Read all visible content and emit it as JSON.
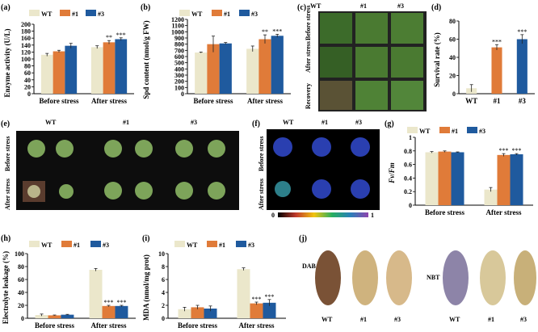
{
  "colors": {
    "WT": "#ebe7cb",
    "L1": "#e07b39",
    "L3": "#1f5a9e",
    "err": "#222222"
  },
  "legend": {
    "wt": "WT",
    "l1": "#1",
    "l3": "#3"
  },
  "groups": [
    "Before stress",
    "After stress"
  ],
  "panels": {
    "a": {
      "label": "(a)"
    },
    "b": {
      "label": "(b)"
    },
    "c": {
      "label": "(c)"
    },
    "d": {
      "label": "(d)"
    },
    "e": {
      "label": "(e)"
    },
    "f": {
      "label": "(f)"
    },
    "g": {
      "label": "(g)"
    },
    "h": {
      "label": "(h)"
    },
    "i": {
      "label": "(i)"
    },
    "j": {
      "label": "(j)"
    }
  },
  "photo_text": {
    "col_wt": "WT",
    "col_1": "#1",
    "col_3": "#3",
    "row_before": "Before stress",
    "row_after": "After stress",
    "row_recovery": "Recovery",
    "scale_min": "0",
    "scale_max": "1",
    "dab": "DAB",
    "nbt": "NBT"
  },
  "chart_data": [
    {
      "id": "a",
      "type": "bar",
      "categories": [
        "Before stress",
        "After stress"
      ],
      "series": [
        {
          "name": "WT",
          "values": [
            112,
            134
          ],
          "err": [
            4,
            4
          ]
        },
        {
          "name": "#1",
          "values": [
            122,
            148
          ],
          "err": [
            3,
            5
          ]
        },
        {
          "name": "#3",
          "values": [
            138,
            157
          ],
          "err": [
            7,
            4
          ]
        }
      ],
      "ylabel": "Enzyme activity (U/L)",
      "ylim": [
        0,
        200
      ],
      "yticks": [
        0,
        20,
        40,
        60,
        80,
        100,
        120,
        140,
        160,
        180,
        200
      ],
      "annotations": [
        [
          "",
          ""
        ],
        [
          "",
          "**",
          "***"
        ]
      ]
    },
    {
      "id": "b",
      "type": "bar",
      "categories": [
        "Before stress",
        "After stress"
      ],
      "series": [
        {
          "name": "WT",
          "values": [
            665,
            725
          ],
          "err": [
            8,
            45
          ]
        },
        {
          "name": "#1",
          "values": [
            800,
            880
          ],
          "err": [
            130,
            70
          ]
        },
        {
          "name": "#3",
          "values": [
            812,
            935
          ],
          "err": [
            15,
            25
          ]
        }
      ],
      "ylabel": "Spd content (nmol/g FW)",
      "ylim": [
        0,
        1200
      ],
      "yticks": [
        0,
        100,
        200,
        300,
        400,
        500,
        600,
        700,
        800,
        900,
        1000,
        1100,
        1200
      ],
      "annotations": [
        [
          "",
          ""
        ],
        [
          "",
          "**",
          "***"
        ]
      ]
    },
    {
      "id": "d",
      "type": "bar",
      "categories": [
        "WT",
        "#1",
        "#3"
      ],
      "values": [
        6,
        51,
        60
      ],
      "err": [
        4,
        3,
        5
      ],
      "ylabel": "Survival rate (%)",
      "ylim": [
        0,
        80
      ],
      "yticks": [
        0,
        20,
        40,
        60,
        80
      ],
      "annotations": [
        "",
        "***",
        "***"
      ]
    },
    {
      "id": "g",
      "type": "bar",
      "categories": [
        "Before stress",
        "After stress"
      ],
      "series": [
        {
          "name": "WT",
          "values": [
            0.78,
            0.23
          ],
          "err": [
            0.01,
            0.03
          ]
        },
        {
          "name": "#1",
          "values": [
            0.79,
            0.74
          ],
          "err": [
            0.01,
            0.02
          ]
        },
        {
          "name": "#3",
          "values": [
            0.78,
            0.75
          ],
          "err": [
            0.005,
            0.01
          ]
        }
      ],
      "ylabel": "Fv/Fm",
      "ylim": [
        0,
        1.0
      ],
      "yticks": [
        0,
        0.2,
        0.4,
        0.6,
        0.8,
        1.0
      ],
      "annotations": [
        [
          "",
          ""
        ],
        [
          "",
          "***",
          "***"
        ]
      ]
    },
    {
      "id": "h",
      "type": "bar",
      "categories": [
        "Before stress",
        "After stress"
      ],
      "series": [
        {
          "name": "WT",
          "values": [
            5,
            75
          ],
          "err": [
            1.5,
            2
          ]
        },
        {
          "name": "#1",
          "values": [
            4.5,
            19
          ],
          "err": [
            0.5,
            1
          ]
        },
        {
          "name": "#3",
          "values": [
            5.5,
            19
          ],
          "err": [
            0.5,
            1
          ]
        }
      ],
      "ylabel": "Electrolyte leakage (%)",
      "ylim": [
        0,
        100
      ],
      "yticks": [
        0,
        20,
        40,
        60,
        80,
        100
      ],
      "annotations": [
        [
          "",
          ""
        ],
        [
          "",
          "***",
          "***"
        ]
      ]
    },
    {
      "id": "i",
      "type": "bar",
      "categories": [
        "Before stress",
        "After stress"
      ],
      "series": [
        {
          "name": "WT",
          "values": [
            1.4,
            7.6
          ],
          "err": [
            0.3,
            0.2
          ]
        },
        {
          "name": "#1",
          "values": [
            1.7,
            2.3
          ],
          "err": [
            0.3,
            0.2
          ]
        },
        {
          "name": "#3",
          "values": [
            1.5,
            2.4
          ],
          "err": [
            0.4,
            0.5
          ]
        }
      ],
      "ylabel": "MDA (nmol/mg prot)",
      "ylim": [
        0,
        10
      ],
      "yticks": [
        0,
        2,
        4,
        6,
        8,
        10
      ],
      "annotations": [
        [
          "",
          ""
        ],
        [
          "",
          "***",
          "***"
        ]
      ]
    }
  ]
}
